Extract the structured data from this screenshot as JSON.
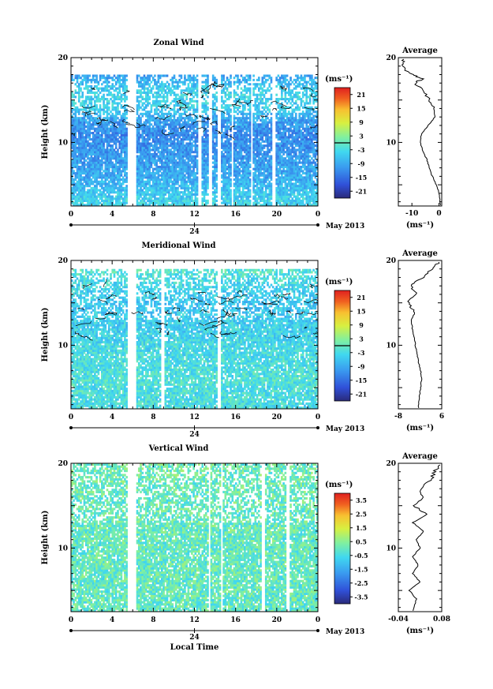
{
  "common": {
    "ylabel": "Height (km)",
    "xlabel": "Local Time",
    "unit_label": "(ms⁻¹)",
    "date_label": "May 2013",
    "date_tick": "24",
    "avg_title": "Average",
    "time_ticks": [
      "0",
      "4",
      "8",
      "12",
      "16",
      "20",
      "0"
    ],
    "height_ticks": [
      "10",
      "20"
    ]
  },
  "chart_data": [
    {
      "type": "heatmap",
      "title": "Zonal Wind",
      "xlabel": "",
      "ylabel": "Height (km)",
      "x_range": [
        0,
        24
      ],
      "y_range": [
        2.5,
        20
      ],
      "colorbar": {
        "label": "(ms⁻¹)",
        "ticks": [
          "21",
          "15",
          "9",
          "3",
          "-3",
          "-9",
          "-15",
          "-21"
        ],
        "range": [
          -24,
          24
        ],
        "zero_line": true
      },
      "field": {
        "base": -6,
        "height_profile": [
          [
            3,
            -4
          ],
          [
            6,
            -9
          ],
          [
            9,
            -11
          ],
          [
            11,
            -12
          ],
          [
            12.5,
            -10
          ],
          [
            14,
            -5
          ],
          [
            16,
            -4
          ],
          [
            18,
            -10
          ],
          [
            20,
            -8
          ]
        ],
        "valid_height": [
          2.5,
          18
        ],
        "gap_columns": [
          [
            5.5,
            6.3
          ],
          [
            12.4,
            12.7
          ],
          [
            13.4,
            13.7
          ],
          [
            14.3,
            14.6
          ],
          [
            15.6,
            15.8
          ],
          [
            17.5,
            17.7
          ],
          [
            19.5,
            19.8
          ]
        ],
        "contours": true
      },
      "average": {
        "title": "Average",
        "xlabel": "(ms⁻¹)",
        "xticks": [
          "-10",
          "0"
        ],
        "xlim": [
          -15,
          1
        ],
        "points": [
          [
            0.5,
            2.6
          ],
          [
            0,
            4
          ],
          [
            -1,
            5
          ],
          [
            -2.5,
            6
          ],
          [
            -3.5,
            7
          ],
          [
            -4.5,
            8
          ],
          [
            -6,
            9
          ],
          [
            -7,
            10
          ],
          [
            -6.5,
            11
          ],
          [
            -4,
            12
          ],
          [
            -1.5,
            13
          ],
          [
            -2,
            14
          ],
          [
            -3.5,
            15
          ],
          [
            -5.5,
            16
          ],
          [
            -9,
            17
          ],
          [
            -6,
            17.5
          ],
          [
            -10,
            18
          ],
          [
            -14,
            19
          ],
          [
            -13,
            19.8
          ]
        ]
      }
    },
    {
      "type": "heatmap",
      "title": "Meridional Wind",
      "xlabel": "",
      "ylabel": "Height (km)",
      "x_range": [
        0,
        24
      ],
      "y_range": [
        2.5,
        20
      ],
      "colorbar": {
        "label": "(ms⁻¹)",
        "ticks": [
          "21",
          "15",
          "9",
          "3",
          "-3",
          "-9",
          "-15",
          "-21"
        ],
        "range": [
          -24,
          24
        ],
        "zero_line": true
      },
      "field": {
        "base": -3,
        "height_profile": [
          [
            3,
            -3
          ],
          [
            6,
            -2
          ],
          [
            9,
            -3
          ],
          [
            11,
            -4
          ],
          [
            13,
            -5
          ],
          [
            15,
            -6
          ],
          [
            17,
            -4
          ],
          [
            19,
            -1
          ]
        ],
        "valid_height": [
          2.5,
          19
        ],
        "gap_columns": [
          [
            5.5,
            6.3
          ],
          [
            8.8,
            9.1
          ],
          [
            14.3,
            14.6
          ]
        ],
        "contours": true
      },
      "average": {
        "title": "Average",
        "xlabel": "(ms⁻¹)",
        "xticks": [
          "-8",
          "6"
        ],
        "xlim": [
          -8,
          6
        ],
        "points": [
          [
            -1.5,
            2.6
          ],
          [
            -1.2,
            4
          ],
          [
            -0.8,
            5
          ],
          [
            -0.5,
            6
          ],
          [
            -0.8,
            7
          ],
          [
            -1.5,
            8
          ],
          [
            -2,
            9
          ],
          [
            -2.5,
            10
          ],
          [
            -3,
            11
          ],
          [
            -3.5,
            12
          ],
          [
            -3.8,
            13
          ],
          [
            -2.5,
            14
          ],
          [
            -5,
            15
          ],
          [
            -2,
            16
          ],
          [
            -4,
            17
          ],
          [
            0,
            18
          ],
          [
            3,
            19
          ],
          [
            5,
            19.8
          ]
        ]
      }
    },
    {
      "type": "heatmap",
      "title": "Vertical Wind",
      "xlabel": "Local Time",
      "ylabel": "Height (km)",
      "x_range": [
        0,
        24
      ],
      "y_range": [
        2.5,
        20
      ],
      "colorbar": {
        "label": "(ms⁻¹)",
        "ticks": [
          "3.5",
          "2.5",
          "1.5",
          "0.5",
          "-0.5",
          "-1.5",
          "-2.5",
          "-3.5"
        ],
        "range": [
          -4,
          4
        ],
        "zero_line": false
      },
      "field": {
        "base": 0,
        "height_profile": [
          [
            3,
            0
          ],
          [
            10,
            0
          ],
          [
            20,
            0.1
          ]
        ],
        "valid_height": [
          2.5,
          20
        ],
        "gap_columns": [
          [
            5.5,
            6.3
          ],
          [
            13.4,
            13.6
          ],
          [
            14.6,
            14.8
          ],
          [
            18.5,
            18.8
          ],
          [
            21,
            21.3
          ]
        ],
        "contours": false
      },
      "average": {
        "title": "Average",
        "xlabel": "(ms⁻¹)",
        "xticks": [
          "-0.04",
          "0.08"
        ],
        "xlim": [
          -0.04,
          0.08
        ],
        "points": [
          [
            0.0,
            2.6
          ],
          [
            0.01,
            4
          ],
          [
            -0.01,
            5
          ],
          [
            0.02,
            6
          ],
          [
            0.0,
            7
          ],
          [
            0.015,
            8
          ],
          [
            0.0,
            9
          ],
          [
            0.02,
            10
          ],
          [
            0.01,
            11
          ],
          [
            0.03,
            12
          ],
          [
            0.0,
            13
          ],
          [
            0.04,
            14
          ],
          [
            0.005,
            15
          ],
          [
            0.03,
            16
          ],
          [
            0.02,
            17
          ],
          [
            0.05,
            18
          ],
          [
            0.06,
            19
          ],
          [
            0.075,
            19.8
          ]
        ]
      }
    }
  ]
}
